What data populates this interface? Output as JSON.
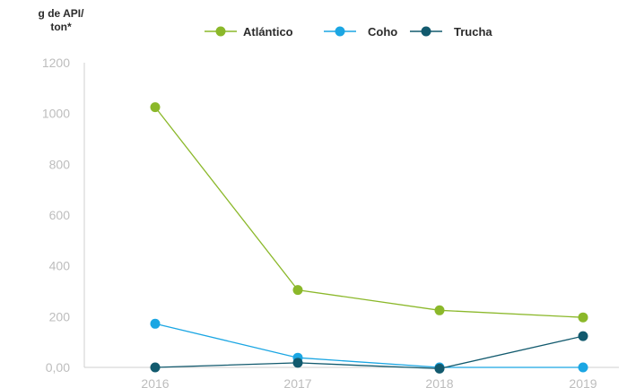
{
  "chart_data": {
    "type": "line",
    "title": "",
    "ylabel": [
      "g de API/",
      "ton*"
    ],
    "xlabel": "",
    "categories": [
      "2016",
      "2017",
      "2018",
      "2019"
    ],
    "ylim": [
      0,
      1200
    ],
    "yticks": [
      0,
      200,
      400,
      600,
      800,
      1000,
      1200
    ],
    "ytick_labels": [
      "0,00",
      "200",
      "400",
      "600",
      "800",
      "1000",
      "1200"
    ],
    "grid": false,
    "legend_position": "top",
    "series": [
      {
        "name": "Atlántico",
        "color": "#8bb82a",
        "values": [
          1025,
          305,
          225,
          197
        ]
      },
      {
        "name": "Coho",
        "color": "#1ba6e3",
        "values": [
          172,
          38,
          0,
          0
        ]
      },
      {
        "name": "Trucha",
        "color": "#125a6e",
        "values": [
          0,
          18,
          -5,
          123
        ]
      }
    ]
  }
}
